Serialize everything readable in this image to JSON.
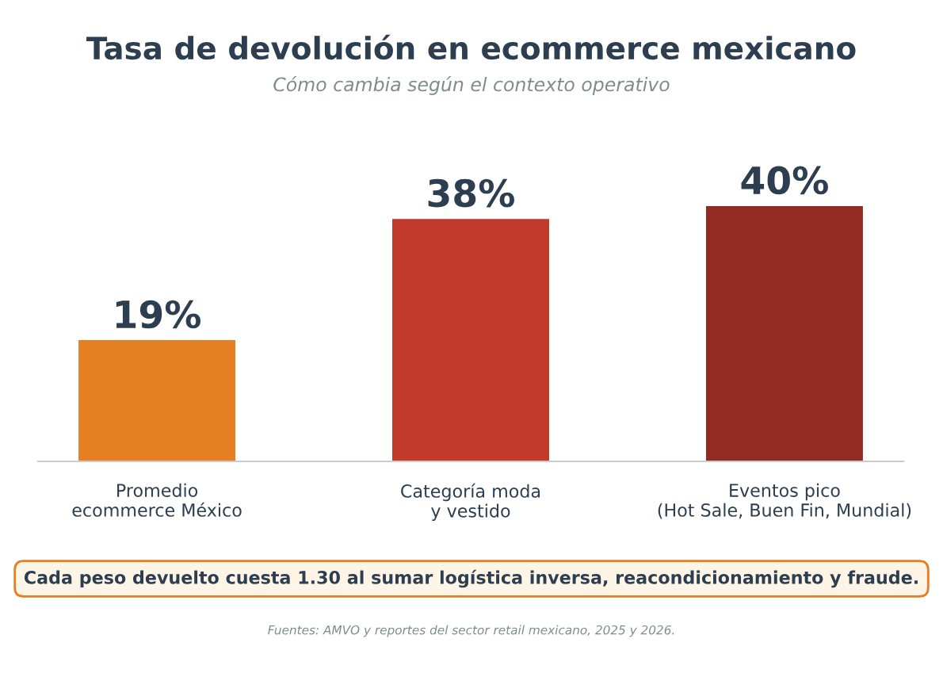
{
  "chart_data": {
    "type": "bar",
    "title": "Tasa de devolución en ecommerce mexicano",
    "subtitle": "Cómo cambia según el contexto operativo",
    "categories": [
      "Promedio\necommerce México",
      "Categoría moda\ny vestido",
      "Eventos pico\n(Hot Sale, Buen Fin, Mundial)"
    ],
    "values": [
      19,
      38,
      40
    ],
    "colors": [
      "#e67e22",
      "#c0392b",
      "#922b21"
    ],
    "value_labels": [
      "19%",
      "38%",
      "40%"
    ],
    "grid": false,
    "legend": false,
    "annotations": [
      "Cada peso devuelto cuesta 1.30 al sumar logística inversa, reacondicionamiento y fraude.",
      "Fuentes: AMVO y reportes del sector retail mexicano, 2025 y 2026."
    ]
  }
}
